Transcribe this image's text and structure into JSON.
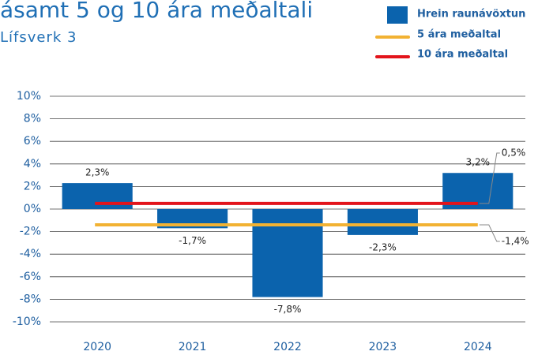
{
  "chart_data": {
    "type": "bar",
    "title": "ásamt 5 og 10 ára meðaltali",
    "subtitle": "Lífsverk 3",
    "categories": [
      "2020",
      "2021",
      "2022",
      "2023",
      "2024"
    ],
    "series": [
      {
        "name": "Hrein raunávöxtun",
        "color": "#0b63ad",
        "values": [
          2.3,
          -1.7,
          -7.8,
          -2.3,
          3.2
        ],
        "value_labels": [
          "2,3%",
          "-1,7%",
          "-7,8%",
          "-2,3%",
          "3,2%"
        ]
      }
    ],
    "lines": [
      {
        "name": "5 ára meðaltal",
        "color": "#f2b233",
        "value": -1.4,
        "value_label": "-1,4%"
      },
      {
        "name": "10 ára meðaltal",
        "color": "#e3141b",
        "value": 0.5,
        "value_label": "0,5%"
      }
    ],
    "ylim": [
      -10,
      10
    ],
    "yticks": [
      {
        "value": -10,
        "label": "-10%"
      },
      {
        "value": -8,
        "label": "-8%"
      },
      {
        "value": -6,
        "label": "-6%"
      },
      {
        "value": -4,
        "label": "-4%"
      },
      {
        "value": -2,
        "label": "-2%"
      },
      {
        "value": 0,
        "label": "0%"
      },
      {
        "value": 2,
        "label": "2%"
      },
      {
        "value": 4,
        "label": "4%"
      },
      {
        "value": 6,
        "label": "6%"
      },
      {
        "value": 8,
        "label": "8%"
      },
      {
        "value": 10,
        "label": "10%"
      }
    ],
    "grid": true
  }
}
